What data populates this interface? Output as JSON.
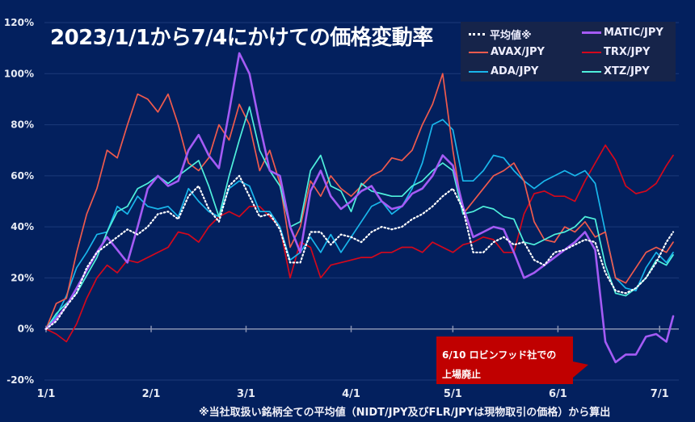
{
  "chart_data": {
    "type": "line",
    "title": "2023/1/1から7/4にかけての価格変動率",
    "xlabel": "",
    "ylabel": "",
    "ylim": [
      -20,
      120
    ],
    "yticks": [
      -20,
      0,
      20,
      40,
      60,
      80,
      100,
      120
    ],
    "ytick_labels": [
      "-20%",
      "0%",
      "20%",
      "40%",
      "60%",
      "80%",
      "100%",
      "120%"
    ],
    "xlim_days": [
      0,
      185
    ],
    "xticks_days": [
      0,
      31,
      59,
      90,
      120,
      151,
      181
    ],
    "xtick_labels": [
      "1/1",
      "2/1",
      "3/1",
      "4/1",
      "5/1",
      "6/1",
      "7/1"
    ],
    "grid": true,
    "legend_position": "top-right",
    "x_days": [
      0,
      3,
      6,
      9,
      12,
      15,
      18,
      21,
      24,
      27,
      30,
      33,
      36,
      39,
      42,
      45,
      48,
      51,
      54,
      57,
      60,
      63,
      66,
      69,
      72,
      75,
      78,
      81,
      84,
      87,
      90,
      93,
      96,
      99,
      102,
      105,
      108,
      111,
      114,
      117,
      120,
      123,
      126,
      129,
      132,
      135,
      138,
      141,
      144,
      147,
      150,
      153,
      156,
      159,
      162,
      165,
      168,
      171,
      174,
      177,
      180,
      183,
      185
    ],
    "series": [
      {
        "name": "平均値※",
        "key": "avg",
        "style": "dotted",
        "color": "#ffffff",
        "values": [
          0,
          3,
          9,
          14,
          24,
          30,
          33,
          36,
          39,
          37,
          40,
          45,
          46,
          43,
          52,
          56,
          47,
          42,
          56,
          60,
          52,
          44,
          45,
          39,
          26,
          26,
          38,
          38,
          33,
          37,
          36,
          34,
          38,
          40,
          39,
          40,
          43,
          45,
          48,
          52,
          55,
          47,
          30,
          30,
          34,
          36,
          33,
          34,
          27,
          25,
          30,
          31,
          33,
          35,
          34,
          22,
          15,
          14,
          16,
          20,
          26,
          34,
          38
        ]
      },
      {
        "name": "MATIC/JPY",
        "key": "matic",
        "style": "solid",
        "color": "#a45bf5",
        "values": [
          0,
          4,
          9,
          16,
          23,
          30,
          36,
          31,
          26,
          40,
          55,
          60,
          56,
          58,
          70,
          76,
          68,
          63,
          85,
          108,
          100,
          80,
          62,
          60,
          40,
          30,
          54,
          62,
          52,
          47,
          50,
          54,
          56,
          50,
          47,
          48,
          53,
          55,
          60,
          68,
          64,
          48,
          36,
          38,
          40,
          39,
          30,
          20,
          22,
          25,
          28,
          31,
          34,
          38,
          31,
          -5,
          -13,
          -10,
          -10,
          -3,
          -2,
          -5,
          5
        ]
      },
      {
        "name": "AVAX/JPY",
        "key": "avax",
        "style": "solid",
        "color": "#f05a4d",
        "values": [
          0,
          10,
          12,
          30,
          45,
          55,
          70,
          67,
          80,
          92,
          90,
          85,
          92,
          80,
          65,
          62,
          67,
          80,
          74,
          88,
          80,
          62,
          70,
          57,
          32,
          40,
          58,
          52,
          60,
          55,
          52,
          56,
          60,
          62,
          67,
          66,
          70,
          80,
          88,
          100,
          70,
          45,
          50,
          55,
          60,
          62,
          65,
          58,
          42,
          35,
          34,
          40,
          38,
          42,
          36,
          38,
          20,
          18,
          24,
          30,
          32,
          30,
          34
        ]
      },
      {
        "name": "TRX/JPY",
        "key": "trx",
        "style": "solid",
        "color": "#d4081c",
        "values": [
          0,
          -2,
          -5,
          2,
          12,
          20,
          25,
          22,
          27,
          26,
          28,
          30,
          32,
          38,
          37,
          34,
          40,
          44,
          46,
          44,
          48,
          48,
          44,
          40,
          20,
          34,
          32,
          20,
          25,
          26,
          27,
          28,
          28,
          30,
          30,
          32,
          32,
          30,
          34,
          32,
          30,
          33,
          34,
          36,
          35,
          30,
          30,
          45,
          53,
          54,
          52,
          52,
          50,
          58,
          65,
          72,
          66,
          56,
          53,
          54,
          57,
          64,
          68
        ]
      },
      {
        "name": "ADA/JPY",
        "key": "ada",
        "style": "solid",
        "color": "#19b6eb",
        "values": [
          0,
          5,
          13,
          24,
          30,
          37,
          38,
          48,
          45,
          52,
          48,
          47,
          48,
          44,
          55,
          50,
          46,
          44,
          55,
          58,
          56,
          46,
          46,
          40,
          27,
          30,
          36,
          30,
          37,
          30,
          36,
          42,
          48,
          50,
          45,
          48,
          55,
          65,
          80,
          82,
          78,
          58,
          58,
          62,
          68,
          67,
          62,
          58,
          55,
          58,
          60,
          62,
          60,
          62,
          57,
          38,
          20,
          16,
          15,
          24,
          30,
          26,
          30
        ]
      },
      {
        "name": "XTZ/JPY",
        "key": "xtz",
        "style": "solid",
        "color": "#4ff0dc",
        "values": [
          0,
          6,
          10,
          14,
          21,
          28,
          38,
          46,
          48,
          55,
          57,
          60,
          57,
          60,
          63,
          66,
          56,
          44,
          60,
          74,
          87,
          70,
          62,
          56,
          40,
          42,
          62,
          68,
          56,
          54,
          46,
          57,
          54,
          53,
          52,
          52,
          56,
          58,
          62,
          65,
          62,
          45,
          46,
          48,
          47,
          44,
          43,
          34,
          33,
          35,
          37,
          38,
          40,
          44,
          43,
          25,
          14,
          13,
          16,
          20,
          27,
          25,
          29
        ]
      }
    ]
  },
  "legend": {
    "items": [
      {
        "label": "平均値※",
        "key": "avg"
      },
      {
        "label": "MATIC/JPY",
        "key": "matic"
      },
      {
        "label": "AVAX/JPY",
        "key": "avax"
      },
      {
        "label": "TRX/JPY",
        "key": "trx"
      },
      {
        "label": "ADA/JPY",
        "key": "ada"
      },
      {
        "label": "XTZ/JPY",
        "key": "xtz"
      }
    ]
  },
  "annotation": {
    "line1": "6/10 ロビンフッド社での",
    "line2": "上場廃止",
    "color": "#c00000",
    "target_day": 161
  },
  "footnote": "※当社取扱い銘柄全ての平均値（NIDT/JPY及びFLR/JPYは現物取引の価格）から算出",
  "colors": {
    "background": "#03205e",
    "legend_background": "#16244a",
    "gridline": "#1c3a7a",
    "zero_axis": "#8a93b2"
  }
}
